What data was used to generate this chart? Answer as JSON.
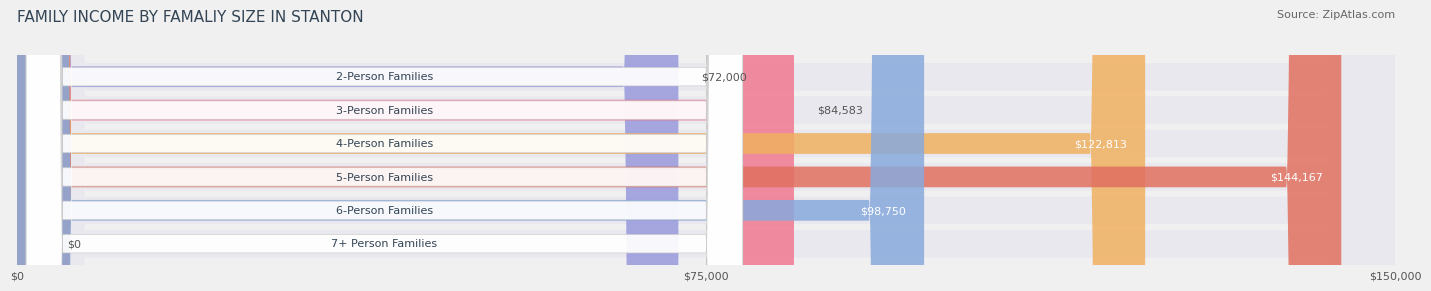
{
  "title": "FAMILY INCOME BY FAMALIY SIZE IN STANTON",
  "source": "Source: ZipAtlas.com",
  "categories": [
    "2-Person Families",
    "3-Person Families",
    "4-Person Families",
    "5-Person Families",
    "6-Person Families",
    "7+ Person Families"
  ],
  "values": [
    72000,
    84583,
    122813,
    144167,
    98750,
    0
  ],
  "max_value": 150000,
  "bar_colors": [
    "#9999dd",
    "#f07890",
    "#f0b060",
    "#e07060",
    "#88aadd",
    "#c0a8cc"
  ],
  "label_texts": [
    "$72,000",
    "$84,583",
    "$122,813",
    "$144,167",
    "$98,750",
    "$0"
  ],
  "label_inside": [
    false,
    false,
    true,
    true,
    true,
    false
  ],
  "x_ticks": [
    0,
    75000,
    150000
  ],
  "x_tick_labels": [
    "$0",
    "$75,000",
    "$150,000"
  ],
  "background_color": "#f0f0f0",
  "bar_background": "#e8e8ee",
  "title_color": "#334455",
  "source_color": "#666666",
  "title_fontsize": 11,
  "source_fontsize": 8,
  "label_fontsize": 8,
  "category_fontsize": 8
}
